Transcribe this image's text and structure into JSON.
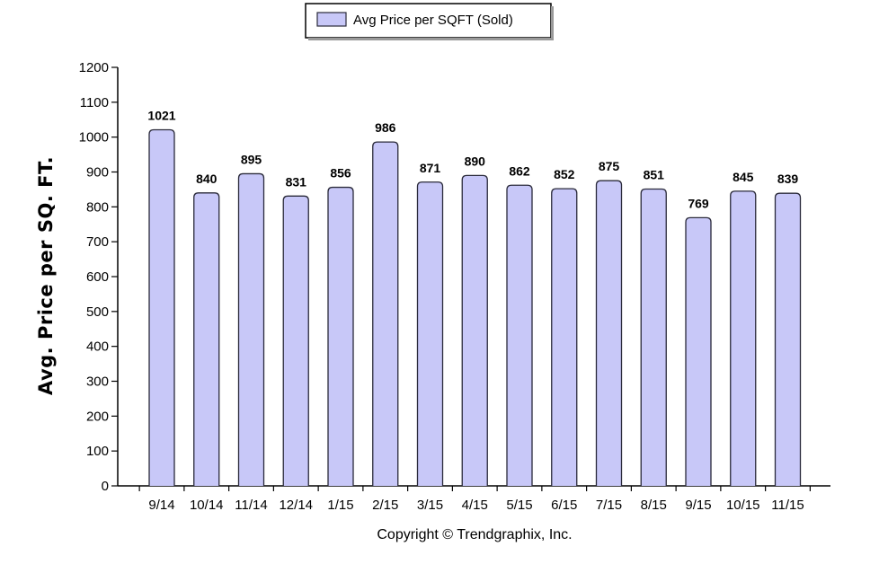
{
  "chart_data": {
    "type": "bar",
    "categories": [
      "9/14",
      "10/14",
      "11/14",
      "12/14",
      "1/15",
      "2/15",
      "3/15",
      "4/15",
      "5/15",
      "6/15",
      "7/15",
      "8/15",
      "9/15",
      "10/15",
      "11/15"
    ],
    "series": [
      {
        "name": "Avg Price per SQFT (Sold)",
        "values": [
          1021,
          840,
          895,
          831,
          856,
          986,
          871,
          890,
          862,
          852,
          875,
          851,
          769,
          845,
          839
        ]
      }
    ],
    "xlabel": "",
    "ylabel": "Avg. Price per SQ. FT.",
    "ylim": [
      0,
      1200
    ],
    "yticks": [
      0,
      100,
      200,
      300,
      400,
      500,
      600,
      700,
      800,
      900,
      1000,
      1100,
      1200
    ],
    "grid": false,
    "legend": "top-center",
    "bar_color": "#c8c8f8",
    "bar_stroke": "#2a2a3a"
  },
  "footer": {
    "copyright": "Copyright © Trendgraphix, Inc."
  }
}
